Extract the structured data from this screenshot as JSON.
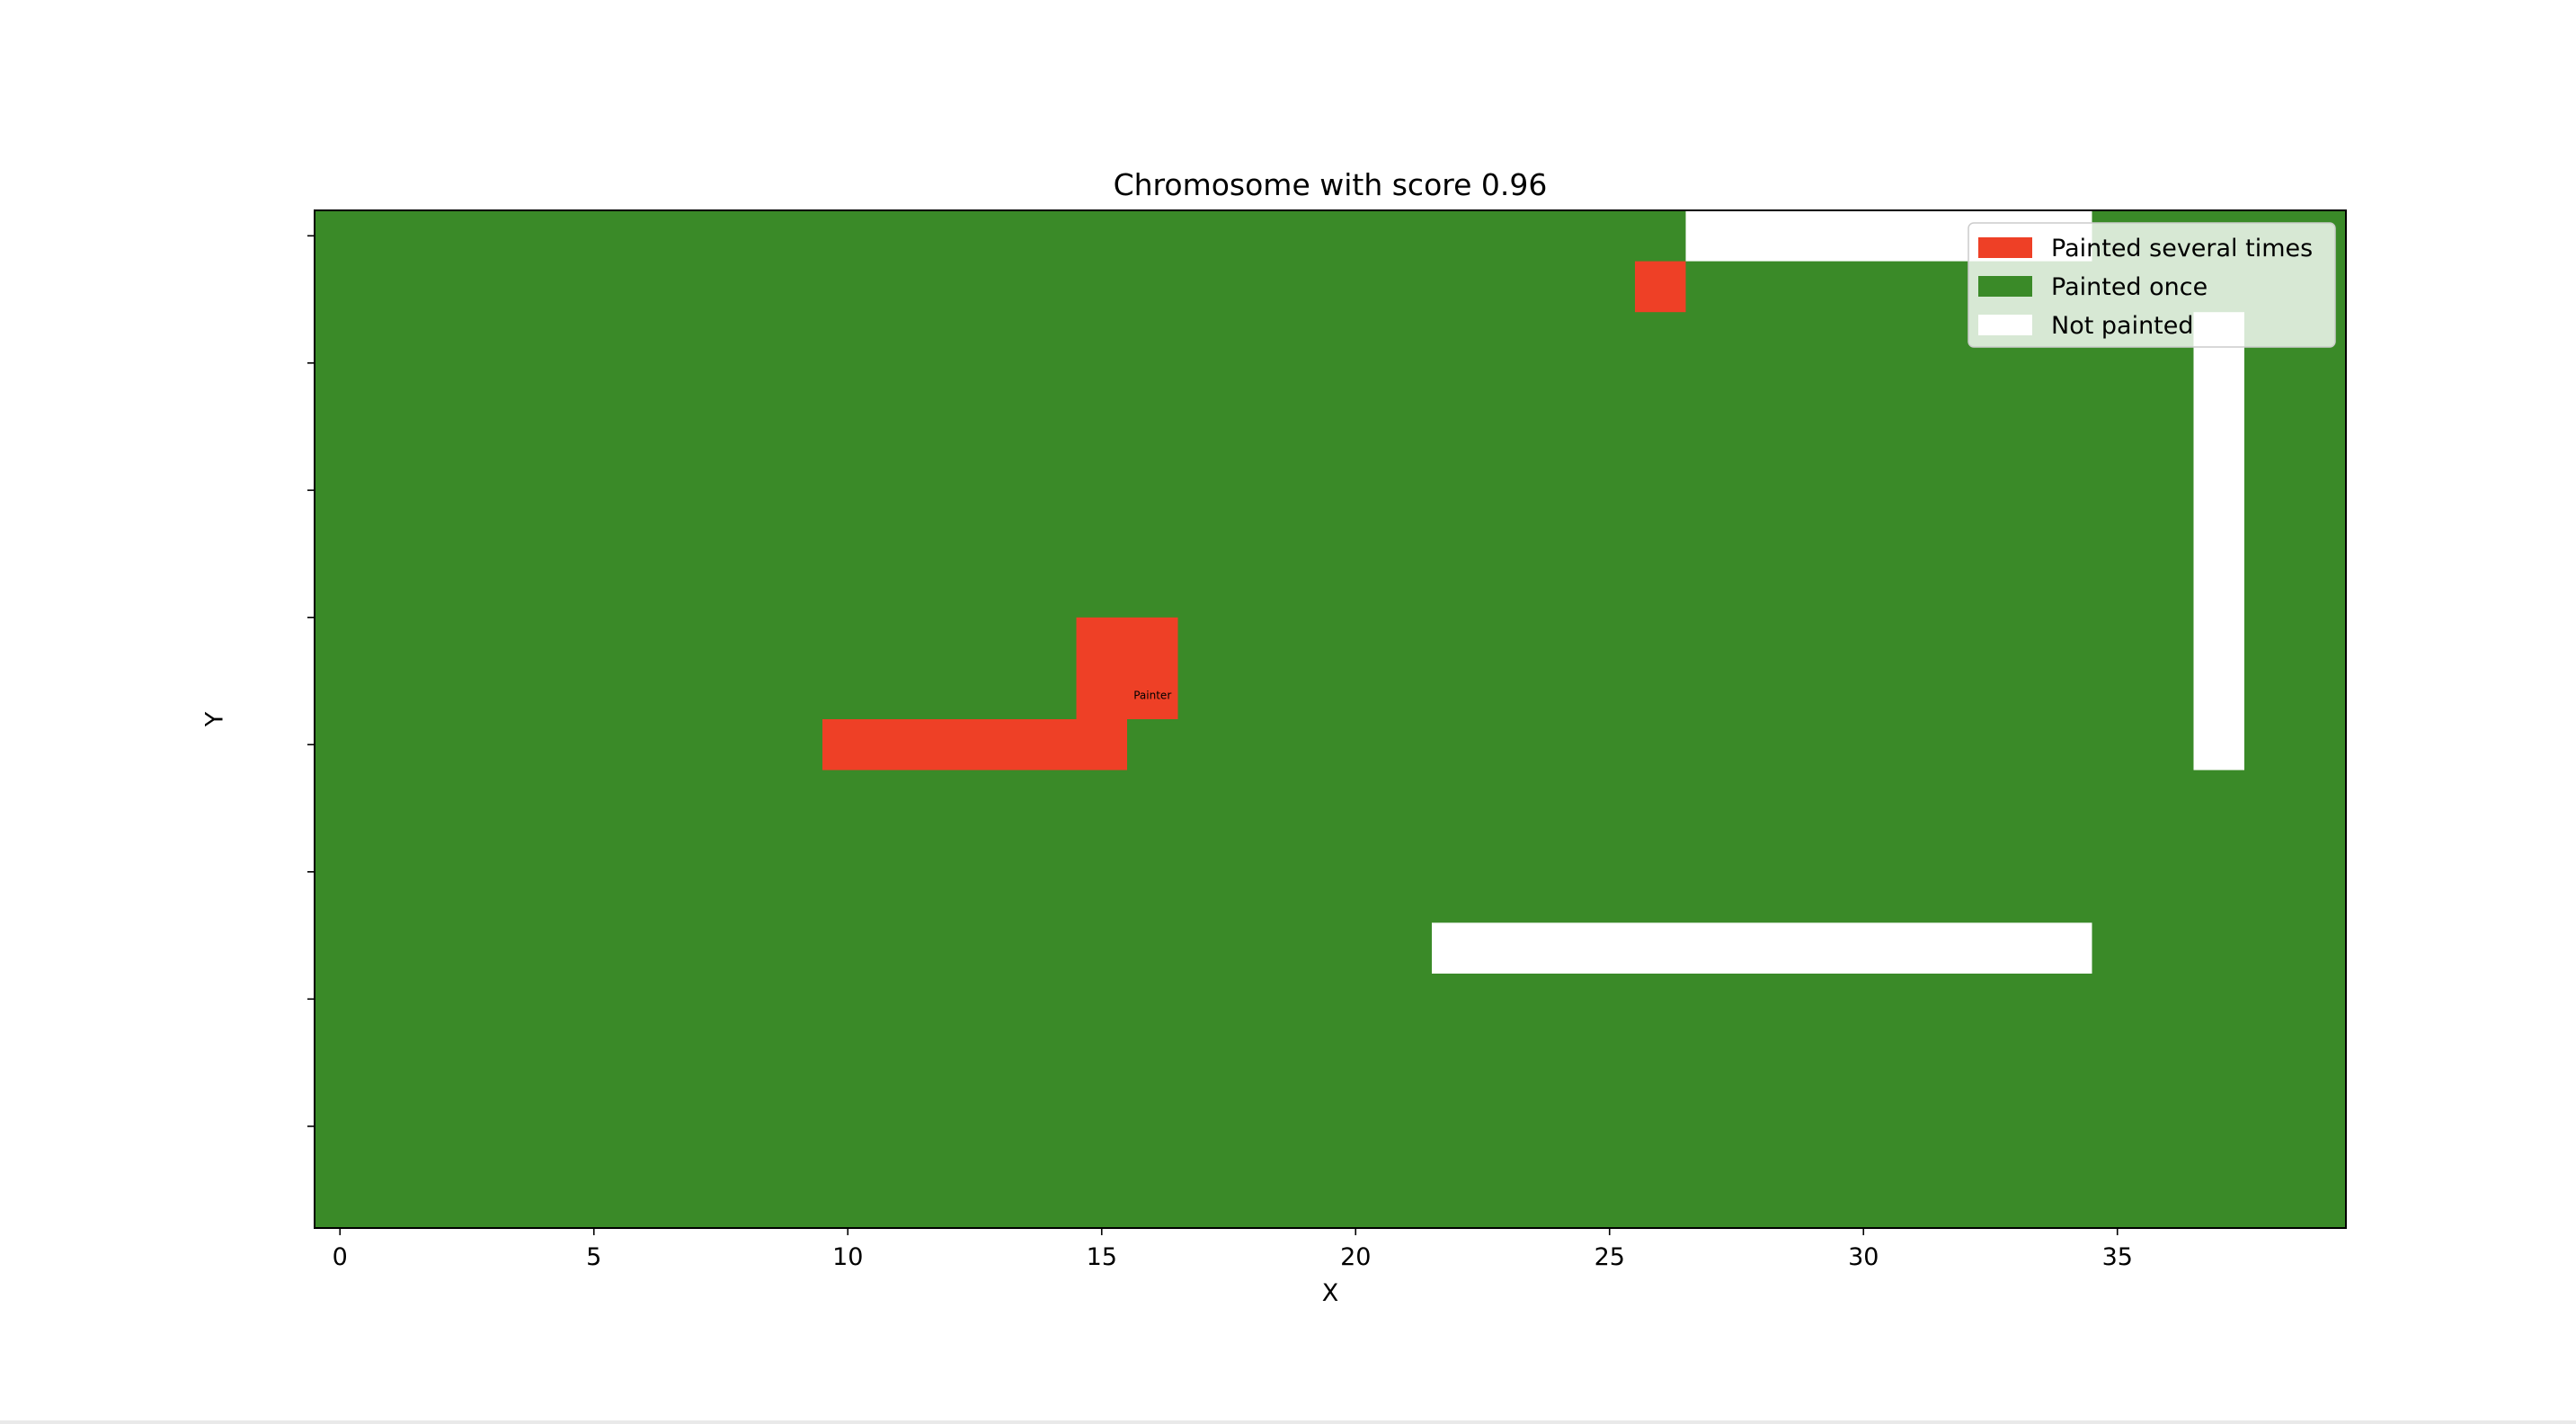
{
  "chart_data": {
    "type": "heatmap",
    "title": "Chromosome with score 0.96",
    "xlabel": "X",
    "ylabel": "Y",
    "xlim": [
      -0.5,
      39.5
    ],
    "ylim": [
      -0.5,
      19.5
    ],
    "x_ticks": [
      0,
      5,
      10,
      15,
      20,
      25,
      30,
      35
    ],
    "y_ticks": [
      0,
      2.5,
      5,
      7.5,
      10,
      12.5,
      15,
      17.5
    ],
    "y_tick_labels_shown": false,
    "grid_size": {
      "cols": 40,
      "rows": 20
    },
    "default_state": "once",
    "states": {
      "several": {
        "label": "Painted several times",
        "color": "#ee4026"
      },
      "once": {
        "label": "Painted once",
        "color": "#3a8a28"
      },
      "none": {
        "label": "Not painted",
        "color": "#ffffff"
      }
    },
    "legend_order": [
      "several",
      "once",
      "none"
    ],
    "legend_position": "upper right",
    "regions": [
      {
        "state": "none",
        "x": [
          27,
          34
        ],
        "y": [
          0,
          0
        ]
      },
      {
        "state": "several",
        "x": [
          26,
          26
        ],
        "y": [
          1,
          1
        ]
      },
      {
        "state": "none",
        "x": [
          37,
          37
        ],
        "y": [
          2,
          10
        ]
      },
      {
        "state": "several",
        "x": [
          15,
          16
        ],
        "y": [
          8,
          9
        ]
      },
      {
        "state": "several",
        "x": [
          10,
          15
        ],
        "y": [
          10,
          10
        ]
      },
      {
        "state": "none",
        "x": [
          22,
          34
        ],
        "y": [
          14,
          14
        ]
      }
    ],
    "annotations": [
      {
        "text": "Painter",
        "x": 16,
        "y": 9
      }
    ]
  }
}
